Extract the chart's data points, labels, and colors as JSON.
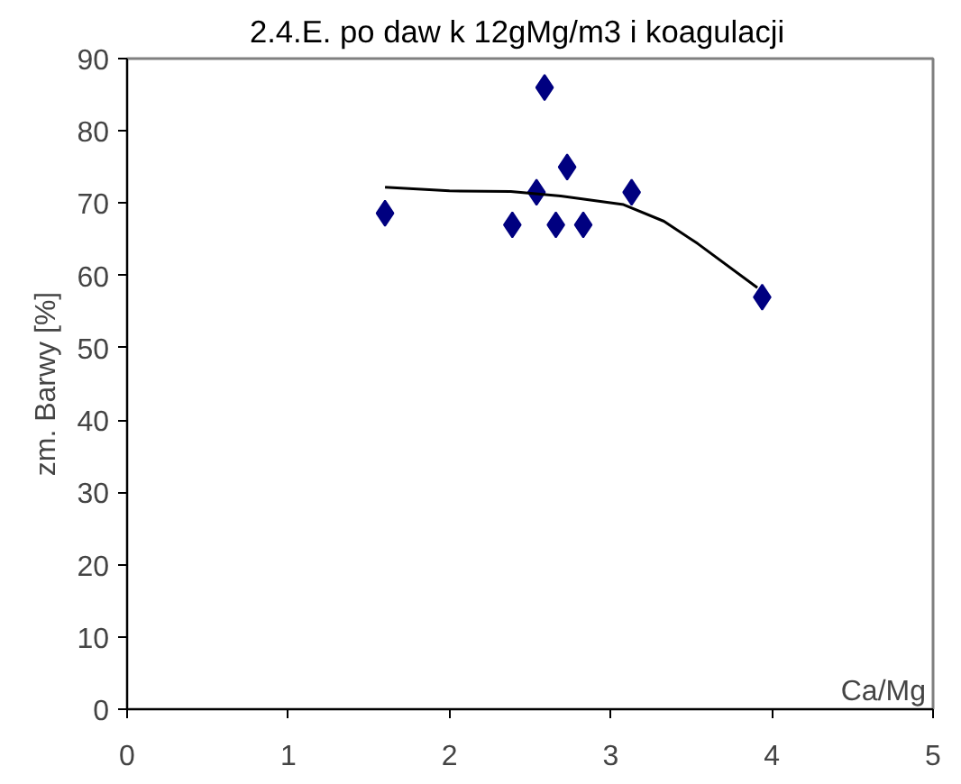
{
  "chart_data": {
    "type": "scatter",
    "title": "2.4.E.    po daw k 12gMg/m3 i koagulacji",
    "xlabel": "Ca/Mg",
    "ylabel": "zm. Barwy [%]",
    "series": [
      {
        "marker": "diamond",
        "color": "#000080",
        "x": [
          1.6,
          2.59,
          2.39,
          2.54,
          2.66,
          2.73,
          2.83,
          3.13,
          3.94
        ],
        "values": [
          68.6,
          86,
          67,
          71.5,
          67,
          75,
          67,
          71.5,
          57
        ]
      },
      {
        "type": "line",
        "color": "#000000",
        "x": [
          1.6,
          2.0,
          2.38,
          2.69,
          3.08,
          3.33,
          3.54,
          3.91
        ],
        "values": [
          72.2,
          71.7,
          71.6,
          71,
          69.8,
          67.5,
          64.4,
          58.3
        ]
      }
    ],
    "xlim": [
      0,
      5
    ],
    "ylim": [
      0,
      90
    ],
    "xticks": [
      0,
      1,
      2,
      3,
      4,
      5
    ],
    "yticks": [
      0,
      10,
      20,
      30,
      40,
      50,
      60,
      70,
      80,
      90
    ],
    "grid": false
  }
}
